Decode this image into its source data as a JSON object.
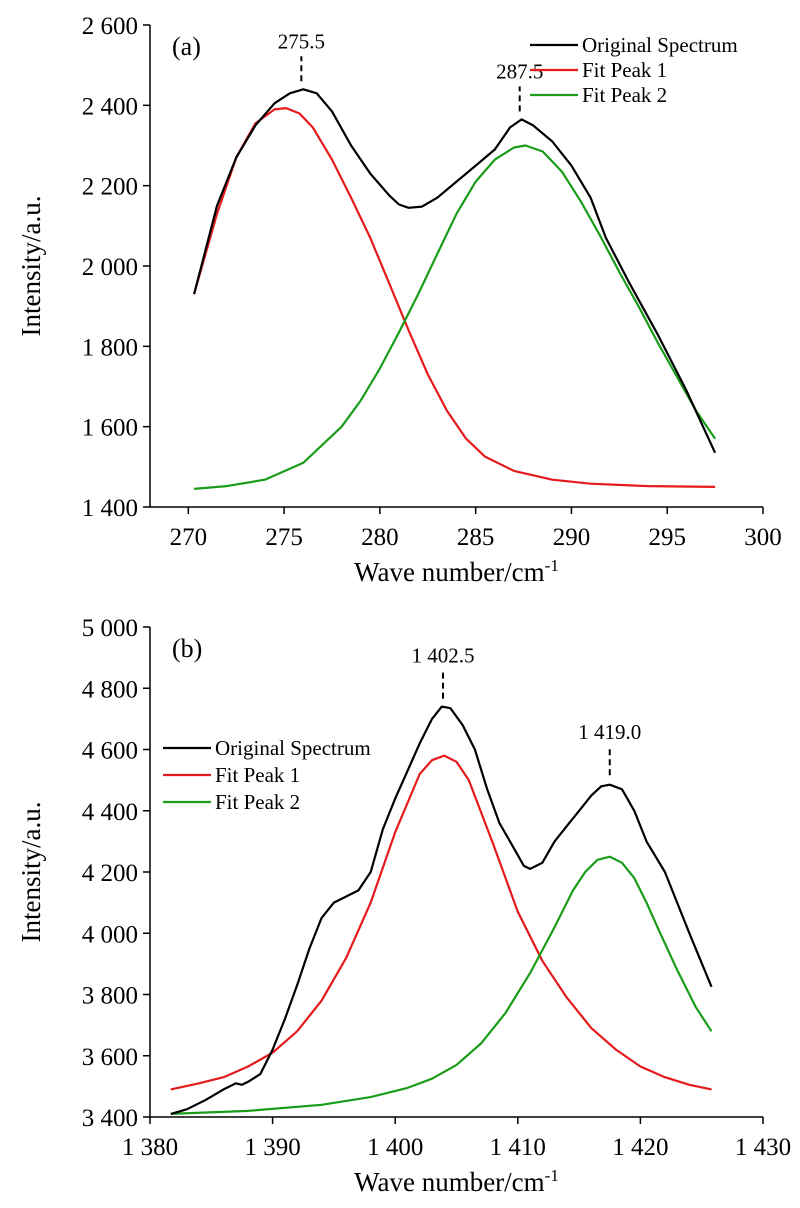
{
  "chart_data": [
    {
      "type": "line",
      "panel_label": "(a)",
      "xlabel": "Wave number/cm",
      "xlabel_sup": "-1",
      "ylabel": "Intensity/a.u.",
      "xlim": [
        268,
        300
      ],
      "ylim": [
        1400,
        2600
      ],
      "xticks": [
        270,
        275,
        280,
        285,
        290,
        295,
        300
      ],
      "xtick_labels": [
        "270",
        "275",
        "280",
        "285",
        "290",
        "295",
        "300"
      ],
      "yticks": [
        1400,
        1600,
        1800,
        2000,
        2200,
        2400,
        2600
      ],
      "ytick_labels": [
        "1 400",
        "1 600",
        "1 800",
        "2 000",
        "2 200",
        "2 400",
        "2 600"
      ],
      "legend_position": "top-right",
      "annotations": [
        {
          "text": "275.5",
          "x": 275.9,
          "y": 2440
        },
        {
          "text": "287.5",
          "x": 287.3,
          "y": 2365
        }
      ],
      "series": [
        {
          "name": "Original Spectrum",
          "color": "#000000",
          "x": [
            270.3,
            271.5,
            272.5,
            273.5,
            274.5,
            275.3,
            276.0,
            276.7,
            277.5,
            278.5,
            279.5,
            280.5,
            281.0,
            281.5,
            282.2,
            283.0,
            284.0,
            285.0,
            286.0,
            286.8,
            287.4,
            288.0,
            289.0,
            290.0,
            291.0,
            291.8,
            293.0,
            294.5,
            296.0,
            297.5
          ],
          "y": [
            1930,
            2150,
            2270,
            2350,
            2405,
            2430,
            2440,
            2430,
            2385,
            2300,
            2230,
            2175,
            2153,
            2145,
            2148,
            2170,
            2210,
            2250,
            2290,
            2345,
            2365,
            2350,
            2310,
            2250,
            2170,
            2070,
            1960,
            1830,
            1690,
            1535
          ]
        },
        {
          "name": "Fit Peak 1",
          "color": "#e41a1c",
          "x": [
            270.3,
            271.5,
            272.5,
            273.5,
            274.5,
            275.1,
            275.8,
            276.5,
            277.5,
            278.5,
            279.5,
            280.5,
            281.5,
            282.5,
            283.5,
            284.5,
            285.5,
            287.0,
            289.0,
            291.0,
            294.0,
            297.5
          ],
          "y": [
            1930,
            2130,
            2270,
            2355,
            2390,
            2393,
            2380,
            2345,
            2265,
            2170,
            2070,
            1955,
            1840,
            1730,
            1640,
            1570,
            1525,
            1490,
            1468,
            1458,
            1452,
            1450
          ]
        },
        {
          "name": "Fit Peak 2",
          "color": "#1a9c1a",
          "x": [
            270.3,
            272.0,
            274.0,
            276.0,
            278.0,
            279.0,
            280.0,
            281.0,
            282.0,
            283.0,
            284.0,
            285.0,
            286.0,
            287.0,
            287.6,
            288.5,
            289.5,
            290.5,
            291.5,
            292.5,
            293.5,
            294.5,
            295.5,
            296.5,
            297.5
          ],
          "y": [
            1445,
            1452,
            1468,
            1510,
            1600,
            1665,
            1745,
            1835,
            1930,
            2030,
            2130,
            2210,
            2265,
            2295,
            2300,
            2285,
            2235,
            2160,
            2075,
            1985,
            1900,
            1810,
            1725,
            1640,
            1570
          ]
        }
      ]
    },
    {
      "type": "line",
      "panel_label": "(b)",
      "xlabel": "Wave number/cm",
      "xlabel_sup": "-1",
      "ylabel": "Intensity/a.u.",
      "xlim": [
        1380,
        1430
      ],
      "ylim": [
        3400,
        5000
      ],
      "xticks": [
        1380,
        1390,
        1400,
        1410,
        1420,
        1430
      ],
      "xtick_labels": [
        "1 380",
        "1 390",
        "1 400",
        "1 410",
        "1 420",
        "1 430"
      ],
      "yticks": [
        3400,
        3600,
        3800,
        4000,
        4200,
        4400,
        4600,
        4800,
        5000
      ],
      "ytick_labels": [
        "3 400",
        "3 600",
        "3 800",
        "4 000",
        "4 200",
        "4 400",
        "4 600",
        "4 800",
        "5 000"
      ],
      "legend_position": "center-left",
      "annotations": [
        {
          "text": "1 402.5",
          "x": 1403.9,
          "y": 4740
        },
        {
          "text": "1 419.0",
          "x": 1417.5,
          "y": 4490
        }
      ],
      "series": [
        {
          "name": "Original Spectrum",
          "color": "#000000",
          "x": [
            1381.7,
            1383.0,
            1384.5,
            1386.0,
            1387.0,
            1387.5,
            1388.0,
            1389.0,
            1390.0,
            1391.0,
            1392.0,
            1393.0,
            1394.0,
            1395.0,
            1396.0,
            1397.0,
            1398.0,
            1399.0,
            1400.0,
            1401.0,
            1402.0,
            1403.0,
            1403.8,
            1404.5,
            1405.5,
            1406.5,
            1407.5,
            1408.5,
            1409.5,
            1410.5,
            1411.0,
            1412.0,
            1413.0,
            1414.0,
            1415.0,
            1416.0,
            1416.8,
            1417.5,
            1418.5,
            1419.5,
            1420.5,
            1422.0,
            1424.0,
            1425.8
          ],
          "y": [
            3410,
            3425,
            3455,
            3490,
            3510,
            3505,
            3515,
            3540,
            3620,
            3720,
            3830,
            3950,
            4050,
            4100,
            4120,
            4140,
            4200,
            4340,
            4440,
            4530,
            4620,
            4700,
            4740,
            4735,
            4680,
            4600,
            4470,
            4360,
            4290,
            4220,
            4210,
            4230,
            4300,
            4350,
            4400,
            4450,
            4480,
            4485,
            4470,
            4400,
            4300,
            4200,
            4000,
            3825
          ]
        },
        {
          "name": "Fit Peak 1",
          "color": "#e41a1c",
          "x": [
            1381.7,
            1384.0,
            1386.0,
            1388.0,
            1390.0,
            1392.0,
            1394.0,
            1396.0,
            1398.0,
            1400.0,
            1402.0,
            1403.0,
            1404.0,
            1405.0,
            1406.0,
            1408.0,
            1410.0,
            1412.0,
            1414.0,
            1416.0,
            1418.0,
            1420.0,
            1422.0,
            1424.0,
            1425.8
          ],
          "y": [
            3490,
            3510,
            3530,
            3565,
            3610,
            3680,
            3780,
            3920,
            4100,
            4330,
            4520,
            4565,
            4580,
            4560,
            4500,
            4290,
            4070,
            3910,
            3790,
            3690,
            3620,
            3565,
            3530,
            3505,
            3490
          ]
        },
        {
          "name": "Fit Peak 2",
          "color": "#1a9c1a",
          "x": [
            1381.7,
            1388.0,
            1394.0,
            1398.0,
            1401.0,
            1403.0,
            1405.0,
            1407.0,
            1409.0,
            1411.0,
            1413.0,
            1414.5,
            1415.5,
            1416.5,
            1417.5,
            1418.5,
            1419.5,
            1420.5,
            1421.5,
            1423.0,
            1424.5,
            1425.8
          ],
          "y": [
            3410,
            3420,
            3440,
            3465,
            3495,
            3525,
            3570,
            3640,
            3740,
            3870,
            4020,
            4140,
            4200,
            4240,
            4250,
            4230,
            4180,
            4100,
            4010,
            3880,
            3760,
            3680
          ]
        }
      ]
    }
  ]
}
